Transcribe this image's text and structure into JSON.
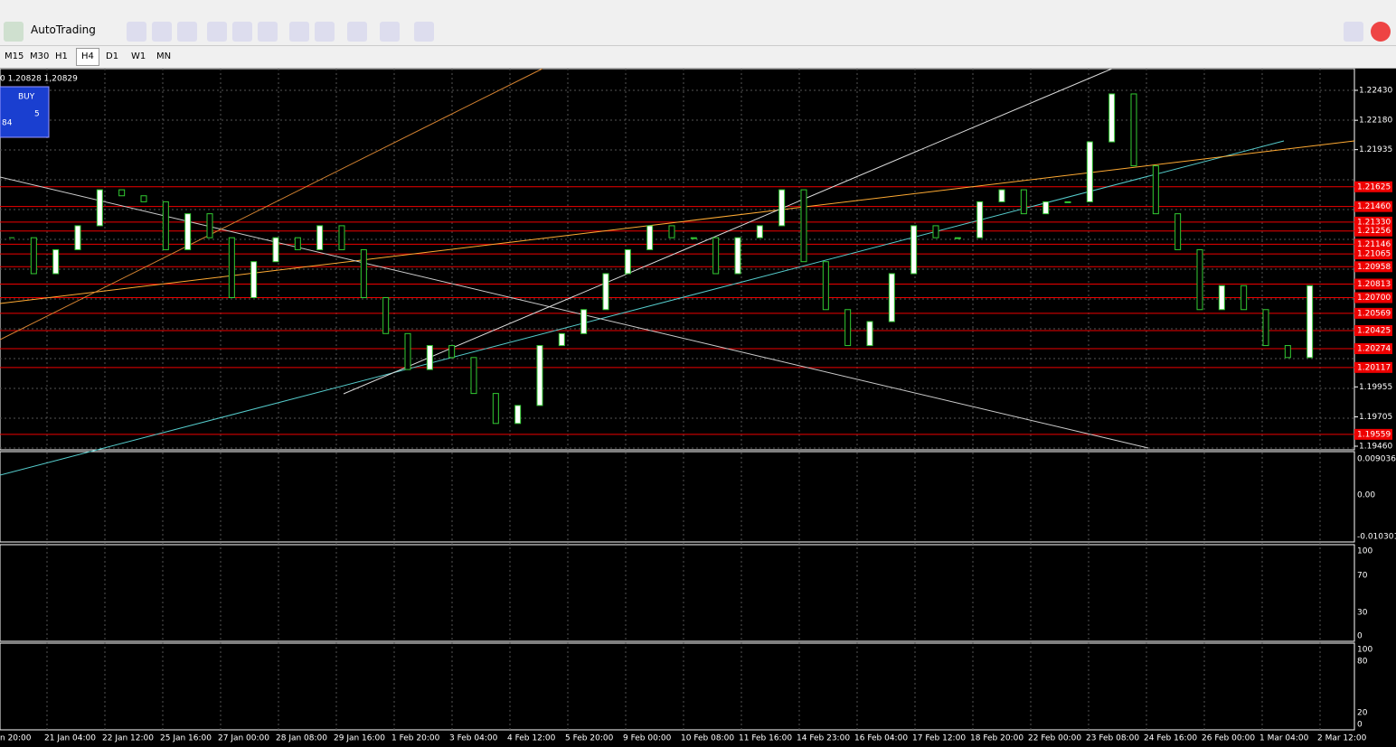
{
  "toolbar": {
    "autotrading": "AutoTrading"
  },
  "timeframes": [
    "M15",
    "M30",
    "H1",
    "H4",
    "D1",
    "W1",
    "MN"
  ],
  "active_timeframe": 3,
  "header": "0 1.20828 1,20829",
  "buy_panel": {
    "label": "BUY",
    "price": "84",
    "sup": "5"
  },
  "price_range": [
    1.1946,
    1.2243
  ],
  "price_axis": [
    "1.22430",
    "1.22180",
    "1.21935",
    "1.19955",
    "1.19705",
    "1.19460"
  ],
  "levels": [
    "1.21625",
    "1.21460",
    "1.21330",
    "1.21256",
    "1.21146",
    "1.21065",
    "1.20958",
    "1.20813",
    "1.20700",
    "1.20569",
    "1.20425",
    "1.20274",
    "1.20117",
    "1.19559"
  ],
  "candles": {
    "closes": [
      1.212,
      1.209,
      1.211,
      1.213,
      1.216,
      1.2155,
      1.215,
      1.211,
      1.214,
      1.212,
      1.207,
      1.21,
      1.212,
      1.211,
      1.213,
      1.211,
      1.207,
      1.204,
      1.201,
      1.203,
      1.202,
      1.199,
      1.1965,
      1.198,
      1.203,
      1.204,
      1.206,
      1.209,
      1.211,
      1.213,
      1.212,
      1.212,
      1.209,
      1.212,
      1.213,
      1.216,
      1.21,
      1.206,
      1.203,
      1.205,
      1.209,
      1.213,
      1.212,
      1.212,
      1.215,
      1.216,
      1.214,
      1.215,
      1.215,
      1.22,
      1.224,
      1.218,
      1.214,
      1.211,
      1.206,
      1.208,
      1.206,
      1.203,
      1.202,
      1.208
    ]
  },
  "macd_axis": [
    "0.009036",
    "0.00",
    "-0.010301"
  ],
  "rsi_axis": [
    "100",
    "70",
    "30",
    "0"
  ],
  "stoch_axis": [
    "100",
    "80",
    "20",
    "0"
  ],
  "time_axis": [
    "n 20:00",
    "21 Jan 04:00",
    "22 Jan 12:00",
    "25 Jan 16:00",
    "27 Jan 00:00",
    "28 Jan 08:00",
    "29 Jan 16:00",
    "1 Feb 20:00",
    "3 Feb 04:00",
    "4 Feb 12:00",
    "5 Feb 20:00",
    "9 Feb 00:00",
    "10 Feb 08:00",
    "11 Feb 16:00",
    "14 Feb 23:00",
    "16 Feb 04:00",
    "17 Feb 12:00",
    "18 Feb 20:00",
    "22 Feb 00:00",
    "23 Feb 08:00",
    "24 Feb 16:00",
    "26 Feb 00:00",
    "1 Mar 04:00",
    "2 Mar 12:00"
  ]
}
